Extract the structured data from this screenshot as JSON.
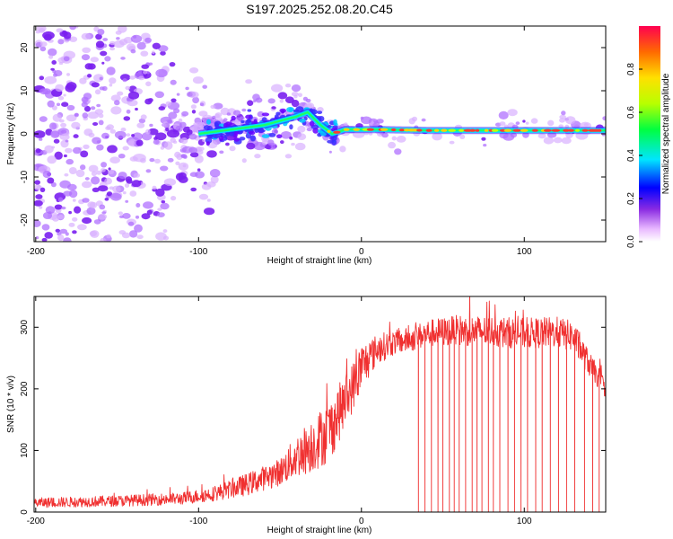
{
  "title": "S197.2025.252.08.20.C45",
  "colors": {
    "snr_line": "#f03030",
    "dot_purple": "#7a1ff0",
    "axis": "#000000"
  },
  "chart_data": [
    {
      "type": "heatmap",
      "name": "spectrogram",
      "xlabel": "Height of straight line (km)",
      "ylabel": "Frequency (Hz)",
      "xlim": [
        -201,
        150
      ],
      "ylim": [
        -25,
        25
      ],
      "xticks": [
        -200,
        -100,
        0,
        100
      ],
      "xtick_labels": [
        "-200",
        "-100",
        "0",
        "100"
      ],
      "yticks": [
        -20,
        -10,
        0,
        10,
        20
      ],
      "ytick_labels": [
        "-20",
        "-10",
        "0",
        "10",
        "20"
      ],
      "ridge": {
        "description": "narrow high-amplitude band",
        "points": [
          [
            -100,
            0
          ],
          [
            -60,
            2
          ],
          [
            -40,
            4
          ],
          [
            -33,
            5
          ],
          [
            -25,
            2
          ],
          [
            -18,
            0
          ],
          [
            -10,
            1
          ],
          [
            0,
            1
          ],
          [
            10,
            1
          ],
          [
            40,
            0.8
          ],
          [
            100,
            0.8
          ],
          [
            150,
            0.8
          ]
        ]
      },
      "colorbar": {
        "label": "Normalized spectral amplitude",
        "range": [
          0.0,
          1.0
        ],
        "ticks": [
          0.0,
          0.2,
          0.4,
          0.6,
          0.8
        ],
        "tick_labels": [
          "0.0",
          "0.2",
          "0.4",
          "0.6",
          "0.8"
        ]
      }
    },
    {
      "type": "line",
      "name": "snr",
      "xlabel": "Height of straight line (km)",
      "ylabel": "SNR (10 * v/v)",
      "xlim": [
        -201,
        150
      ],
      "ylim": [
        0,
        350
      ],
      "xticks": [
        -200,
        -100,
        0,
        100
      ],
      "xtick_labels": [
        "-200",
        "-100",
        "0",
        "100"
      ],
      "yticks": [
        0,
        100,
        200,
        300
      ],
      "ytick_labels": [
        "0",
        "100",
        "200",
        "300"
      ],
      "envelope": {
        "x": [
          -201,
          -150,
          -110,
          -90,
          -70,
          -50,
          -40,
          -30,
          -20,
          -10,
          -5,
          0,
          5,
          10,
          20,
          30,
          40,
          60,
          80,
          100,
          120,
          130,
          140,
          150
        ],
        "mean": [
          15,
          18,
          22,
          30,
          45,
          65,
          90,
          110,
          130,
          180,
          205,
          235,
          250,
          265,
          275,
          280,
          290,
          295,
          293,
          290,
          292,
          285,
          240,
          200
        ],
        "spread": [
          8,
          9,
          10,
          12,
          18,
          22,
          35,
          45,
          50,
          45,
          40,
          40,
          30,
          25,
          20,
          20,
          22,
          25,
          25,
          25,
          25,
          25,
          20,
          15
        ]
      },
      "dropouts_x": [
        35,
        39,
        43,
        47,
        50,
        54,
        57,
        60,
        64,
        68,
        71,
        74,
        78,
        81,
        85,
        90,
        94,
        98,
        102,
        107,
        111,
        116,
        121,
        126,
        131,
        137,
        142,
        146
      ]
    }
  ]
}
